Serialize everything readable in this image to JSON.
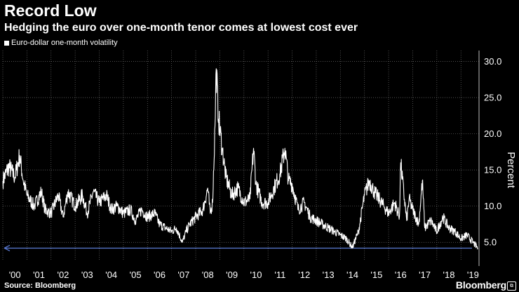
{
  "header": {
    "title": "Record Low",
    "subtitle": "Hedging the euro over one-month tenor comes at lowest cost ever"
  },
  "footer": {
    "source": "Source: Bloomberg",
    "brand": "Bloomberg"
  },
  "colors": {
    "background": "#000000",
    "series": "#ffffff",
    "grid": "#6e6e6e",
    "reference_line": "#5b7bd5"
  },
  "chart_data": {
    "type": "line",
    "title": "Record Low",
    "subtitle": "Hedging the euro over one-month tenor comes at lowest cost ever",
    "xlabel": "",
    "ylabel": "Percent",
    "ylim": [
      2.5,
      31.5
    ],
    "xlim": [
      2000.0,
      2019.75
    ],
    "grid": true,
    "legend_position": "top-left",
    "yticks": [
      5,
      10,
      15,
      20,
      25,
      30
    ],
    "ytick_labels": [
      "5.0",
      "10.0",
      "15.0",
      "20.0",
      "25.0",
      "30.0"
    ],
    "xticks": [
      2000.5,
      2001.5,
      2002.5,
      2003.5,
      2004.5,
      2005.5,
      2006.5,
      2007.5,
      2008.5,
      2009.5,
      2010.5,
      2011.5,
      2012.5,
      2013.5,
      2014.5,
      2015.5,
      2016.5,
      2017.5,
      2018.5,
      2019.5
    ],
    "xtick_labels": [
      "'00",
      "'01",
      "'02",
      "'03",
      "'04",
      "'05",
      "'06",
      "'07",
      "'08",
      "'09",
      "'10",
      "'11",
      "'12",
      "'13",
      "'14",
      "'15",
      "'16",
      "'17",
      "'18",
      "'19"
    ],
    "reference_line": {
      "y": 4.2,
      "direction": "left-arrow"
    },
    "series": [
      {
        "name": "Euro-dollar one-month volatility",
        "x": [
          2000.0,
          2000.25,
          2000.5,
          2000.7,
          2000.85,
          2001.0,
          2001.3,
          2001.6,
          2001.75,
          2002.0,
          2002.3,
          2002.5,
          2002.7,
          2003.0,
          2003.3,
          2003.5,
          2003.75,
          2004.0,
          2004.3,
          2004.5,
          2004.75,
          2005.0,
          2005.3,
          2005.5,
          2005.75,
          2006.0,
          2006.3,
          2006.5,
          2006.75,
          2007.0,
          2007.2,
          2007.45,
          2007.6,
          2007.75,
          2008.0,
          2008.3,
          2008.5,
          2008.6,
          2008.7,
          2008.8,
          2008.85,
          2008.95,
          2009.1,
          2009.25,
          2009.5,
          2009.75,
          2010.0,
          2010.25,
          2010.4,
          2010.5,
          2010.75,
          2011.0,
          2011.25,
          2011.5,
          2011.7,
          2011.85,
          2012.0,
          2012.25,
          2012.5,
          2012.75,
          2013.0,
          2013.25,
          2013.5,
          2013.75,
          2014.0,
          2014.25,
          2014.5,
          2014.75,
          2015.0,
          2015.2,
          2015.4,
          2015.6,
          2015.8,
          2016.0,
          2016.25,
          2016.45,
          2016.5,
          2016.75,
          2016.85,
          2017.0,
          2017.25,
          2017.4,
          2017.5,
          2017.75,
          2018.0,
          2018.25,
          2018.5,
          2018.75,
          2019.0,
          2019.25,
          2019.5,
          2019.7
        ],
        "values": [
          13.5,
          15.5,
          14.0,
          17.0,
          13.5,
          11.5,
          10.0,
          12.0,
          9.5,
          9.0,
          11.5,
          8.5,
          12.0,
          10.0,
          11.5,
          9.0,
          12.0,
          10.5,
          11.5,
          9.5,
          10.0,
          9.0,
          9.5,
          8.0,
          9.5,
          8.5,
          9.0,
          7.5,
          7.0,
          6.5,
          7.0,
          5.0,
          6.5,
          7.5,
          8.5,
          9.5,
          12.5,
          9.0,
          10.5,
          21.0,
          29.0,
          22.0,
          18.0,
          14.0,
          11.5,
          12.5,
          10.5,
          11.0,
          18.0,
          13.0,
          10.5,
          10.5,
          12.5,
          14.5,
          18.0,
          13.5,
          13.0,
          9.5,
          10.5,
          8.5,
          8.0,
          7.5,
          7.0,
          6.5,
          6.0,
          5.5,
          4.3,
          6.5,
          11.5,
          13.5,
          12.0,
          11.0,
          10.0,
          9.0,
          10.5,
          8.5,
          16.0,
          8.0,
          11.0,
          9.5,
          7.5,
          13.5,
          7.0,
          8.0,
          6.5,
          8.5,
          7.0,
          6.5,
          5.5,
          6.0,
          5.0,
          4.2
        ]
      }
    ]
  }
}
